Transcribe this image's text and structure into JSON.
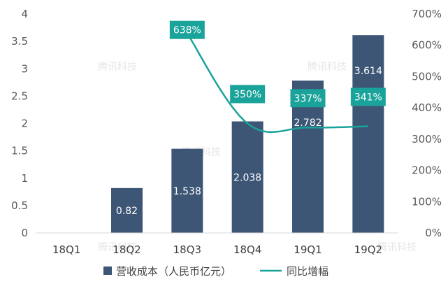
{
  "chart_data": {
    "type": "bar",
    "categories": [
      "18Q1",
      "18Q2",
      "18Q3",
      "18Q4",
      "19Q1",
      "19Q2"
    ],
    "series": [
      {
        "name": "营收成本（人民币亿元）",
        "type": "bar",
        "axis": "left",
        "values": [
          null,
          0.82,
          1.538,
          2.038,
          2.782,
          3.614
        ],
        "labels": [
          "",
          "0.82",
          "1.538",
          "2.038",
          "2.782",
          "3.614"
        ],
        "color": "#3d5675"
      },
      {
        "name": "同比增幅",
        "type": "line",
        "axis": "right",
        "values": [
          null,
          null,
          638,
          350,
          337,
          341
        ],
        "labels": [
          "",
          "",
          "638%",
          "350%",
          "337%",
          "341%"
        ],
        "color": "#1aa39a"
      }
    ],
    "y_left": {
      "ylim": [
        0,
        4
      ],
      "ticks": [
        "0",
        "0.5",
        "1",
        "1.5",
        "2",
        "2.5",
        "3",
        "3.5",
        "4"
      ]
    },
    "y_right": {
      "ylim": [
        0,
        700
      ],
      "ticks": [
        "0%",
        "100%",
        "200%",
        "300%",
        "400%",
        "500%",
        "600%",
        "700%"
      ]
    },
    "grid": false,
    "legend": {
      "position": "bottom"
    },
    "title": "",
    "xlabel": "",
    "ylabel": ""
  },
  "watermark": "腾讯科技"
}
